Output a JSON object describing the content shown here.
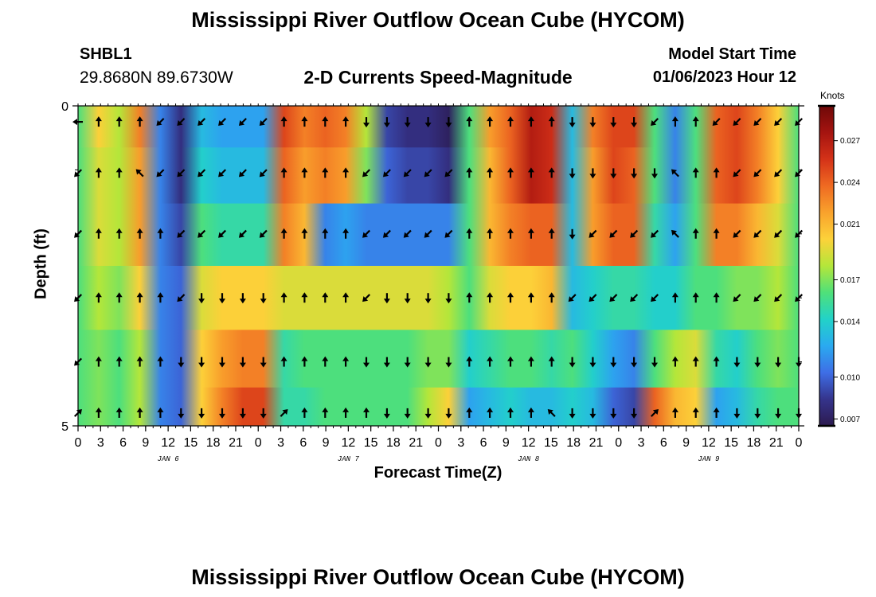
{
  "page": {
    "title_top": "Mississippi River Outflow Ocean Cube (HYCOM)",
    "title_bottom": "Mississippi River Outflow Ocean Cube (HYCOM)"
  },
  "station": {
    "id": "SHBL1",
    "coords": "29.8680N  89.6730W"
  },
  "model": {
    "label": "Model Start Time",
    "value": "01/06/2023 Hour 12"
  },
  "chart_data": {
    "type": "heatmap",
    "title": "2-D Currents Speed-Magnitude",
    "xlabel": "Forecast Time(Z)",
    "ylabel": "Depth (ft)",
    "x_ticks": [
      "0",
      "3",
      "6",
      "9",
      "12",
      "15",
      "18",
      "21",
      "0",
      "3",
      "6",
      "9",
      "12",
      "15",
      "18",
      "21",
      "0",
      "3",
      "6",
      "9",
      "12",
      "15",
      "18",
      "21",
      "0",
      "3",
      "6",
      "9",
      "12",
      "15",
      "18",
      "21",
      "0"
    ],
    "day_labels": [
      {
        "label": "JAN 6",
        "tick_index": 4
      },
      {
        "label": "JAN 7",
        "tick_index": 12
      },
      {
        "label": "JAN 8",
        "tick_index": 20
      },
      {
        "label": "JAN 9",
        "tick_index": 28
      }
    ],
    "x_range_hours": [
      0,
      96
    ],
    "y_range_ft": [
      0,
      5
    ],
    "y_tick_labels": [
      {
        "value": 0,
        "label": "0"
      },
      {
        "value": 5,
        "label": "5"
      }
    ],
    "colorbar": {
      "unit": "Knots",
      "min": 0.0065,
      "max": 0.0295,
      "tick_labels": [
        "0.027",
        "0.024",
        "0.021",
        "0.017",
        "0.014",
        "0.010",
        "0.007"
      ],
      "tick_values": [
        0.027,
        0.024,
        0.021,
        0.017,
        0.014,
        0.01,
        0.007
      ],
      "colors": [
        "#2c1a4f",
        "#35348c",
        "#3e6ee6",
        "#2aaaf0",
        "#22d2c8",
        "#4fe07a",
        "#b4e63a",
        "#fcd23a",
        "#f9a22c",
        "#ef6a22",
        "#d43218",
        "#a51410",
        "#6e0808"
      ]
    },
    "layers": [
      {
        "depth": 0.25,
        "speeds": [
          0.016,
          0.02,
          0.018,
          0.023,
          0.011,
          0.008,
          0.013,
          0.012,
          0.012,
          0.012,
          0.025,
          0.023,
          0.024,
          0.023,
          0.018,
          0.009,
          0.008,
          0.008,
          0.007,
          0.016,
          0.022,
          0.024,
          0.027,
          0.026,
          0.013,
          0.023,
          0.025,
          0.025,
          0.016,
          0.011,
          0.016,
          0.024,
          0.025,
          0.023,
          0.02,
          0.016
        ],
        "dirs": [
          "W",
          "N",
          "N",
          "N",
          "SW",
          "SW",
          "SW",
          "SW",
          "SW",
          "SW",
          "N",
          "N",
          "N",
          "N",
          "S",
          "S",
          "S",
          "S",
          "S",
          "N",
          "N",
          "N",
          "N",
          "N",
          "S",
          "S",
          "S",
          "S",
          "SW",
          "N",
          "N",
          "SW",
          "SW",
          "SW",
          "SW",
          "SW"
        ]
      },
      {
        "depth": 1.05,
        "speeds": [
          0.016,
          0.019,
          0.018,
          0.022,
          0.011,
          0.008,
          0.014,
          0.013,
          0.013,
          0.013,
          0.024,
          0.022,
          0.023,
          0.022,
          0.017,
          0.01,
          0.009,
          0.009,
          0.008,
          0.016,
          0.021,
          0.024,
          0.027,
          0.026,
          0.013,
          0.022,
          0.025,
          0.024,
          0.016,
          0.011,
          0.016,
          0.024,
          0.025,
          0.023,
          0.02,
          0.016
        ],
        "dirs": [
          "SW",
          "N",
          "N",
          "NW",
          "SW",
          "SW",
          "SW",
          "SW",
          "SW",
          "SW",
          "N",
          "N",
          "N",
          "N",
          "SW",
          "SW",
          "SW",
          "SW",
          "SW",
          "N",
          "N",
          "N",
          "N",
          "N",
          "S",
          "S",
          "S",
          "S",
          "S",
          "NW",
          "N",
          "N",
          "SW",
          "SW",
          "SW",
          "SW"
        ]
      },
      {
        "depth": 2.0,
        "speeds": [
          0.016,
          0.019,
          0.018,
          0.022,
          0.011,
          0.009,
          0.016,
          0.015,
          0.015,
          0.015,
          0.023,
          0.021,
          0.011,
          0.012,
          0.011,
          0.011,
          0.011,
          0.011,
          0.011,
          0.016,
          0.021,
          0.023,
          0.024,
          0.024,
          0.013,
          0.022,
          0.024,
          0.024,
          0.015,
          0.012,
          0.016,
          0.023,
          0.023,
          0.021,
          0.019,
          0.016
        ],
        "dirs": [
          "SW",
          "N",
          "N",
          "N",
          "N",
          "SW",
          "SW",
          "SW",
          "SW",
          "SW",
          "N",
          "N",
          "N",
          "N",
          "SW",
          "SW",
          "SW",
          "SW",
          "SW",
          "N",
          "N",
          "N",
          "N",
          "N",
          "S",
          "SW",
          "SW",
          "SW",
          "SW",
          "NW",
          "N",
          "N",
          "SW",
          "SW",
          "SW",
          "SW"
        ]
      },
      {
        "depth": 3.0,
        "speeds": [
          0.016,
          0.018,
          0.017,
          0.02,
          0.011,
          0.01,
          0.019,
          0.02,
          0.02,
          0.02,
          0.019,
          0.019,
          0.019,
          0.019,
          0.019,
          0.019,
          0.019,
          0.019,
          0.018,
          0.016,
          0.019,
          0.02,
          0.02,
          0.021,
          0.013,
          0.014,
          0.015,
          0.015,
          0.014,
          0.014,
          0.016,
          0.016,
          0.017,
          0.017,
          0.018,
          0.016
        ],
        "dirs": [
          "SW",
          "N",
          "N",
          "N",
          "N",
          "SW",
          "S",
          "S",
          "S",
          "S",
          "N",
          "N",
          "N",
          "N",
          "SW",
          "S",
          "S",
          "S",
          "S",
          "N",
          "N",
          "N",
          "N",
          "N",
          "SW",
          "SW",
          "SW",
          "SW",
          "SW",
          "N",
          "N",
          "N",
          "SW",
          "SW",
          "SW",
          "SW"
        ]
      },
      {
        "depth": 4.0,
        "speeds": [
          0.016,
          0.017,
          0.016,
          0.018,
          0.011,
          0.01,
          0.02,
          0.022,
          0.023,
          0.023,
          0.015,
          0.016,
          0.016,
          0.016,
          0.016,
          0.016,
          0.016,
          0.017,
          0.017,
          0.014,
          0.015,
          0.016,
          0.016,
          0.015,
          0.016,
          0.014,
          0.012,
          0.011,
          0.016,
          0.018,
          0.019,
          0.015,
          0.014,
          0.016,
          0.017,
          0.016
        ],
        "dirs": [
          "SW",
          "N",
          "N",
          "N",
          "N",
          "S",
          "S",
          "S",
          "S",
          "S",
          "N",
          "N",
          "N",
          "N",
          "S",
          "S",
          "S",
          "S",
          "S",
          "N",
          "N",
          "N",
          "N",
          "N",
          "S",
          "S",
          "S",
          "S",
          "S",
          "N",
          "N",
          "N",
          "S",
          "S",
          "S",
          "S"
        ]
      },
      {
        "depth": 4.8,
        "speeds": [
          0.016,
          0.017,
          0.016,
          0.018,
          0.011,
          0.01,
          0.02,
          0.023,
          0.025,
          0.025,
          0.015,
          0.015,
          0.016,
          0.016,
          0.016,
          0.016,
          0.016,
          0.018,
          0.02,
          0.012,
          0.013,
          0.014,
          0.013,
          0.013,
          0.014,
          0.013,
          0.01,
          0.009,
          0.024,
          0.021,
          0.02,
          0.012,
          0.013,
          0.015,
          0.016,
          0.016
        ],
        "dirs": [
          "NE",
          "N",
          "N",
          "N",
          "N",
          "S",
          "S",
          "S",
          "S",
          "S",
          "NE",
          "N",
          "N",
          "N",
          "N",
          "S",
          "S",
          "S",
          "S",
          "N",
          "N",
          "N",
          "N",
          "NW",
          "S",
          "S",
          "S",
          "S",
          "NE",
          "N",
          "N",
          "N",
          "S",
          "S",
          "S",
          "S"
        ]
      }
    ]
  }
}
